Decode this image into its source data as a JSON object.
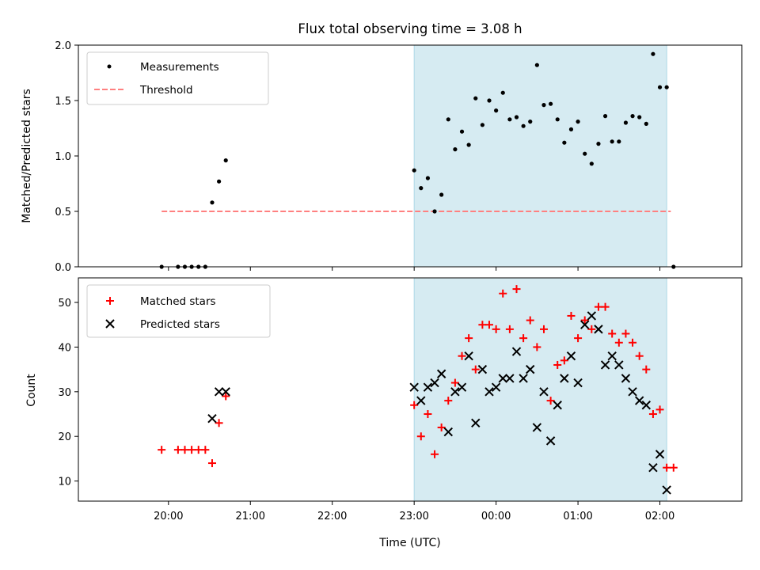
{
  "title": "Flux total observing time = 3.08 h",
  "xlabel": "Time (UTC)",
  "x_ticks": [
    "20:00",
    "21:00",
    "22:00",
    "23:00",
    "00:00",
    "01:00",
    "02:00"
  ],
  "colors": {
    "measure": "#000000",
    "threshold": "#ff8080",
    "matched": "#ff0000",
    "predicted": "#000000",
    "span_fill": "#add8e6"
  },
  "chart_data": [
    {
      "type": "scatter",
      "ylabel": "Matched/Predicted stars",
      "ylim": [
        0,
        2.0
      ],
      "y_ticks": [
        "0.0",
        "0.5",
        "1.0",
        "1.5",
        "2.0"
      ],
      "legend_position": "top-left",
      "legend": [
        "Measurements",
        "Threshold"
      ],
      "threshold": {
        "value": 0.5,
        "x_start": "19:55",
        "x_end": "02:08"
      },
      "observing_span": {
        "start": "23:00",
        "end": "02:05"
      },
      "measurements": {
        "x": [
          "19:55",
          "20:07",
          "20:12",
          "20:17",
          "20:22",
          "20:27",
          "20:32",
          "20:37",
          "20:42",
          "23:00",
          "23:05",
          "23:10",
          "23:15",
          "23:20",
          "23:25",
          "23:30",
          "23:35",
          "23:40",
          "23:45",
          "23:50",
          "23:55",
          "00:00",
          "00:05",
          "00:10",
          "00:15",
          "00:20",
          "00:25",
          "00:30",
          "00:35",
          "00:40",
          "00:45",
          "00:50",
          "00:55",
          "01:00",
          "01:05",
          "01:10",
          "01:15",
          "01:20",
          "01:25",
          "01:30",
          "01:35",
          "01:40",
          "01:45",
          "01:50",
          "01:55",
          "02:00",
          "02:05",
          "02:10"
        ],
        "y": [
          0,
          0,
          0,
          0,
          0,
          0,
          0.58,
          0.77,
          0.96,
          0.87,
          0.71,
          0.8,
          0.5,
          0.65,
          1.33,
          1.06,
          1.22,
          1.1,
          1.52,
          1.28,
          1.5,
          1.41,
          1.57,
          1.33,
          1.35,
          1.27,
          1.31,
          1.82,
          1.46,
          1.47,
          1.33,
          1.12,
          1.24,
          1.31,
          1.02,
          0.93,
          1.11,
          1.36,
          1.13,
          1.13,
          1.3,
          1.36,
          1.35,
          1.29,
          1.92,
          1.62,
          1.62,
          0
        ]
      }
    },
    {
      "type": "scatter",
      "ylabel": "Count",
      "ylim": [
        5.5,
        55.5
      ],
      "y_ticks": [
        "10",
        "20",
        "30",
        "40",
        "50"
      ],
      "legend_position": "top-left",
      "legend": [
        "Matched stars",
        "Predicted stars"
      ],
      "observing_span": {
        "start": "23:00",
        "end": "02:05"
      },
      "series": [
        {
          "name": "Matched stars",
          "x": [
            "19:55",
            "20:07",
            "20:12",
            "20:17",
            "20:22",
            "20:27",
            "20:32",
            "20:37",
            "20:42",
            "23:00",
            "23:05",
            "23:10",
            "23:15",
            "23:20",
            "23:25",
            "23:30",
            "23:35",
            "23:40",
            "23:45",
            "23:50",
            "23:55",
            "00:00",
            "00:05",
            "00:10",
            "00:15",
            "00:20",
            "00:25",
            "00:30",
            "00:35",
            "00:40",
            "00:45",
            "00:50",
            "00:55",
            "01:00",
            "01:05",
            "01:10",
            "01:15",
            "01:20",
            "01:25",
            "01:30",
            "01:35",
            "01:40",
            "01:45",
            "01:50",
            "01:55",
            "02:00",
            "02:05",
            "02:10"
          ],
          "y": [
            17,
            17,
            17,
            17,
            17,
            17,
            14,
            23,
            29,
            27,
            20,
            25,
            16,
            22,
            28,
            32,
            38,
            42,
            35,
            45,
            45,
            44,
            52,
            44,
            53,
            42,
            46,
            40,
            44,
            28,
            36,
            37,
            47,
            42,
            46,
            44,
            49,
            49,
            43,
            41,
            43,
            41,
            38,
            35,
            25,
            26,
            13,
            13
          ]
        },
        {
          "name": "Predicted stars",
          "x": [
            "20:32",
            "20:37",
            "20:42",
            "23:00",
            "23:05",
            "23:10",
            "23:15",
            "23:20",
            "23:25",
            "23:30",
            "23:35",
            "23:40",
            "23:45",
            "23:50",
            "23:55",
            "00:00",
            "00:05",
            "00:10",
            "00:15",
            "00:20",
            "00:25",
            "00:30",
            "00:35",
            "00:40",
            "00:45",
            "00:50",
            "00:55",
            "01:00",
            "01:05",
            "01:10",
            "01:15",
            "01:20",
            "01:25",
            "01:30",
            "01:35",
            "01:40",
            "01:45",
            "01:50",
            "01:55",
            "02:00",
            "02:05"
          ],
          "y": [
            24,
            30,
            30,
            31,
            28,
            31,
            32,
            34,
            21,
            30,
            31,
            38,
            23,
            35,
            30,
            31,
            33,
            33,
            39,
            33,
            35,
            22,
            30,
            19,
            27,
            33,
            38,
            32,
            45,
            47,
            44,
            36,
            38,
            36,
            33,
            30,
            28,
            27,
            13,
            16,
            8
          ]
        }
      ]
    }
  ]
}
